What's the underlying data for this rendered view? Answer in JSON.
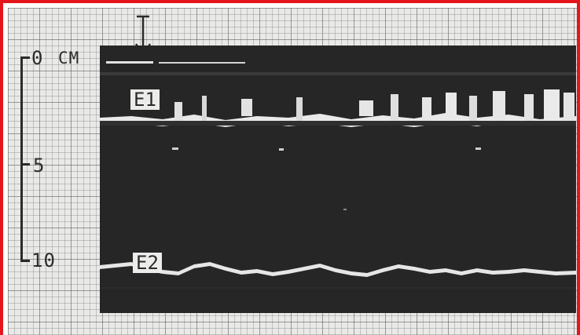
{
  "scale": {
    "labels": [
      {
        "text": "0",
        "unit": "CM"
      },
      {
        "text": "5"
      },
      {
        "text": "10"
      }
    ]
  },
  "echoes": {
    "e1": "E1",
    "e2": "E2"
  },
  "colors": {
    "border": "#e4161b",
    "paper": "#e9e9e7",
    "scan_background": "#262626",
    "echo": "#e8e8e8"
  },
  "icons": {
    "marker": "transducer-arrow-icon"
  }
}
